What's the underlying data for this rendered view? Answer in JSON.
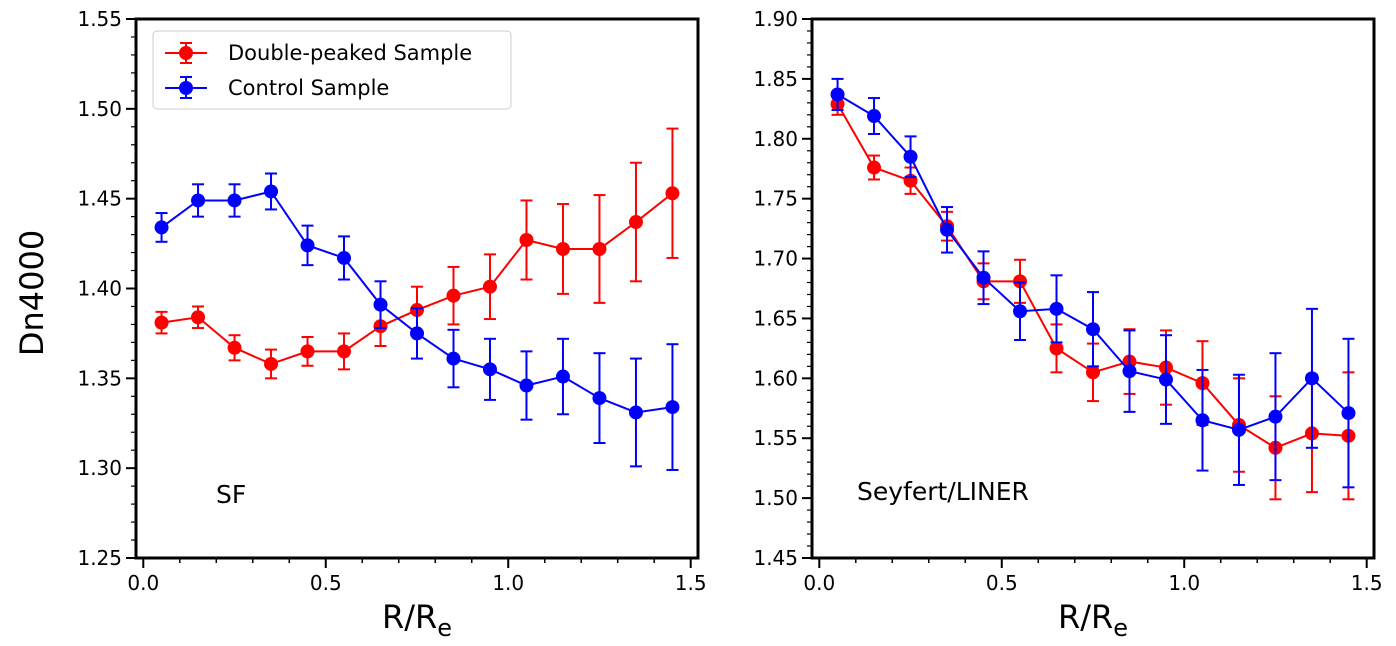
{
  "figure": {
    "ylabel": "Dn4000",
    "legend": {
      "location": "top-left of left panel",
      "entries": [
        {
          "label": "Double-peaked Sample",
          "color": "#ff0000"
        },
        {
          "label": "Control Sample",
          "color": "#0000ff"
        }
      ]
    }
  },
  "chart_data": [
    {
      "type": "line",
      "panel": "SF",
      "title": "",
      "annotation": "SF",
      "xlabel": "R/R",
      "xlabel_sub": "e",
      "ylabel": "Dn4000",
      "xlim": [
        -0.02,
        1.52
      ],
      "ylim": [
        1.25,
        1.55
      ],
      "xticks": [
        0.0,
        0.5,
        1.0,
        1.5
      ],
      "xtick_labels": [
        "0.0",
        "0.5",
        "1.0",
        "1.5"
      ],
      "yticks": [
        1.25,
        1.3,
        1.35,
        1.4,
        1.45,
        1.5,
        1.55
      ],
      "ytick_labels": [
        "1.25",
        "1.30",
        "1.35",
        "1.40",
        "1.45",
        "1.50",
        "1.55"
      ],
      "grid": false,
      "x": [
        0.05,
        0.15,
        0.25,
        0.35,
        0.45,
        0.55,
        0.65,
        0.75,
        0.85,
        0.95,
        1.05,
        1.15,
        1.25,
        1.35,
        1.45
      ],
      "series": [
        {
          "name": "Double-peaked Sample",
          "color": "#ff0000",
          "values": [
            1.381,
            1.384,
            1.367,
            1.358,
            1.365,
            1.365,
            1.379,
            1.388,
            1.396,
            1.401,
            1.427,
            1.422,
            1.422,
            1.437,
            1.453
          ],
          "errors": [
            0.006,
            0.006,
            0.007,
            0.008,
            0.008,
            0.01,
            0.011,
            0.013,
            0.016,
            0.018,
            0.022,
            0.025,
            0.03,
            0.033,
            0.036
          ]
        },
        {
          "name": "Control Sample",
          "color": "#0000ff",
          "values": [
            1.434,
            1.449,
            1.449,
            1.454,
            1.424,
            1.417,
            1.391,
            1.375,
            1.361,
            1.355,
            1.346,
            1.351,
            1.339,
            1.331,
            1.334
          ],
          "errors": [
            0.008,
            0.009,
            0.009,
            0.01,
            0.011,
            0.012,
            0.013,
            0.014,
            0.016,
            0.017,
            0.019,
            0.021,
            0.025,
            0.03,
            0.035
          ]
        }
      ]
    },
    {
      "type": "line",
      "panel": "Seyfert/LINER",
      "title": "",
      "annotation": "Seyfert/LINER",
      "xlabel": "R/R",
      "xlabel_sub": "e",
      "ylabel": "",
      "xlim": [
        -0.02,
        1.52
      ],
      "ylim": [
        1.45,
        1.9
      ],
      "xticks": [
        0.0,
        0.5,
        1.0,
        1.5
      ],
      "xtick_labels": [
        "0.0",
        "0.5",
        "1.0",
        "1.5"
      ],
      "yticks": [
        1.45,
        1.5,
        1.55,
        1.6,
        1.65,
        1.7,
        1.75,
        1.8,
        1.85,
        1.9
      ],
      "ytick_labels": [
        "1.45",
        "1.50",
        "1.55",
        "1.60",
        "1.65",
        "1.70",
        "1.75",
        "1.80",
        "1.85",
        "1.90"
      ],
      "grid": false,
      "x": [
        0.05,
        0.15,
        0.25,
        0.35,
        0.45,
        0.55,
        0.65,
        0.75,
        0.85,
        0.95,
        1.05,
        1.15,
        1.25,
        1.35,
        1.45
      ],
      "series": [
        {
          "name": "Double-peaked Sample",
          "color": "#ff0000",
          "values": [
            1.829,
            1.776,
            1.765,
            1.727,
            1.681,
            1.681,
            1.625,
            1.605,
            1.614,
            1.609,
            1.596,
            1.561,
            1.542,
            1.554,
            1.552
          ],
          "errors": [
            0.009,
            0.01,
            0.011,
            0.012,
            0.015,
            0.018,
            0.02,
            0.024,
            0.027,
            0.031,
            0.035,
            0.039,
            0.043,
            0.049,
            0.053
          ]
        },
        {
          "name": "Control Sample",
          "color": "#0000ff",
          "values": [
            1.837,
            1.819,
            1.785,
            1.724,
            1.684,
            1.656,
            1.658,
            1.641,
            1.606,
            1.599,
            1.565,
            1.557,
            1.568,
            1.6,
            1.571
          ],
          "errors": [
            0.013,
            0.015,
            0.017,
            0.019,
            0.022,
            0.024,
            0.028,
            0.031,
            0.034,
            0.037,
            0.042,
            0.046,
            0.053,
            0.058,
            0.062
          ]
        }
      ]
    }
  ]
}
